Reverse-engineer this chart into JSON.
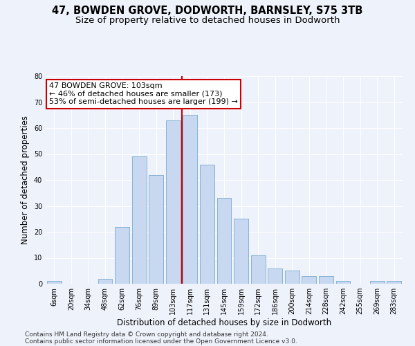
{
  "title1": "47, BOWDEN GROVE, DODWORTH, BARNSLEY, S75 3TB",
  "title2": "Size of property relative to detached houses in Dodworth",
  "xlabel": "Distribution of detached houses by size in Dodworth",
  "ylabel": "Number of detached properties",
  "categories": [
    "6sqm",
    "20sqm",
    "34sqm",
    "48sqm",
    "62sqm",
    "76sqm",
    "89sqm",
    "103sqm",
    "117sqm",
    "131sqm",
    "145sqm",
    "159sqm",
    "172sqm",
    "186sqm",
    "200sqm",
    "214sqm",
    "228sqm",
    "242sqm",
    "255sqm",
    "269sqm",
    "283sqm"
  ],
  "values": [
    1,
    0,
    0,
    2,
    22,
    49,
    42,
    63,
    65,
    46,
    33,
    25,
    11,
    6,
    5,
    3,
    3,
    1,
    0,
    1,
    1
  ],
  "bar_color": "#c8d8f0",
  "bar_edge_color": "#7aaad0",
  "vline_x": 7.5,
  "vline_color": "#cc0000",
  "annotation_lines": [
    "47 BOWDEN GROVE: 103sqm",
    "← 46% of detached houses are smaller (173)",
    "53% of semi-detached houses are larger (199) →"
  ],
  "annotation_box_color": "#ffffff",
  "annotation_box_edge": "#cc0000",
  "ylim": [
    0,
    80
  ],
  "yticks": [
    0,
    10,
    20,
    30,
    40,
    50,
    60,
    70,
    80
  ],
  "background_color": "#eef2fb",
  "grid_color": "#ffffff",
  "footer1": "Contains HM Land Registry data © Crown copyright and database right 2024.",
  "footer2": "Contains public sector information licensed under the Open Government Licence v3.0.",
  "title1_fontsize": 10.5,
  "title2_fontsize": 9.5,
  "xlabel_fontsize": 8.5,
  "ylabel_fontsize": 8.5,
  "tick_fontsize": 7,
  "annot_fontsize": 8,
  "footer_fontsize": 6.5
}
